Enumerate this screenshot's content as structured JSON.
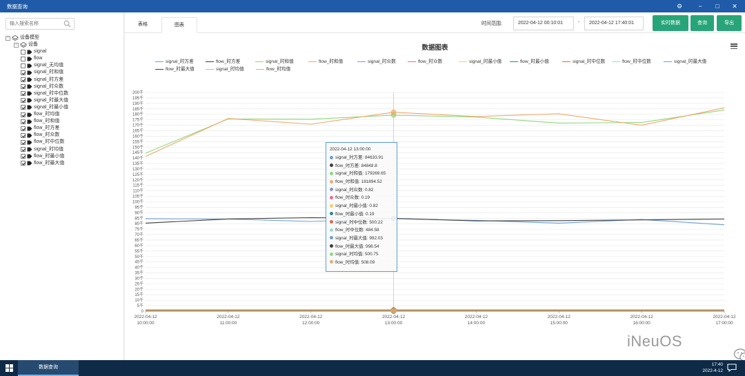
{
  "window": {
    "title": "数据查询"
  },
  "sidebar": {
    "search_placeholder": "输入搜索名称",
    "root": "设备模型",
    "device": "设备",
    "items": [
      {
        "label": "signal",
        "checked": false
      },
      {
        "label": "flow",
        "checked": false
      },
      {
        "label": "signal_无均值",
        "checked": false
      },
      {
        "label": "signal_时和值",
        "checked": true
      },
      {
        "label": "signal_时方差",
        "checked": true
      },
      {
        "label": "signal_时众数",
        "checked": true
      },
      {
        "label": "signal_时中位数",
        "checked": true
      },
      {
        "label": "signal_时最大值",
        "checked": true
      },
      {
        "label": "signal_时最小值",
        "checked": true
      },
      {
        "label": "flow_时均值",
        "checked": true
      },
      {
        "label": "flow_时和值",
        "checked": true
      },
      {
        "label": "flow_时方差",
        "checked": true
      },
      {
        "label": "flow_时众数",
        "checked": true
      },
      {
        "label": "flow_时中位数",
        "checked": true
      },
      {
        "label": "signal_时均值",
        "checked": true
      },
      {
        "label": "flow_时最小值",
        "checked": true
      },
      {
        "label": "flow_时最大值",
        "checked": true
      }
    ]
  },
  "tabs": [
    {
      "label": "表格"
    },
    {
      "label": "图表"
    }
  ],
  "toolbar": {
    "time_range_label": "时间范围:",
    "start_time": "2022-04-12 00:10:01",
    "separator": "-",
    "end_time": "2022-04-12 17:40:01",
    "realtime_button": "实时数据",
    "query_button": "查询",
    "export_button": "导出",
    "button_color": "#27a579"
  },
  "tooltip": {
    "time": "2022-04-12 13:00:00",
    "rows": [
      {
        "label": "signal_时方差: 84633.91",
        "color": "#6a9fd6"
      },
      {
        "label": "flow_时方差: 84848.8",
        "color": "#3d3d3d"
      },
      {
        "label": "signal_时和值: 179269.65",
        "color": "#8ed97a"
      },
      {
        "label": "flow_时和值: 181894.52",
        "color": "#f0a868"
      },
      {
        "label": "signal_时众数: 0.82",
        "color": "#8a8fd6"
      },
      {
        "label": "flow_时众数: 0.19",
        "color": "#f2668a"
      },
      {
        "label": "signal_时最小值: 0.82",
        "color": "#f0d060"
      },
      {
        "label": "flow_时最小值: 0.19",
        "color": "#2a8a8a"
      },
      {
        "label": "signal_时中位数: 500.22",
        "color": "#e86050"
      },
      {
        "label": "flow_时中位数: 484.58",
        "color": "#90e0d0"
      },
      {
        "label": "signal_时最大值: 992.03",
        "color": "#6a9fd6"
      },
      {
        "label": "flow_时最大值: 998.54",
        "color": "#3d3d3d"
      },
      {
        "label": "signal_时均值: 500.75",
        "color": "#8ed97a"
      },
      {
        "label": "flow_时均值: 508.09",
        "color": "#f0a868"
      }
    ]
  },
  "watermark": "iNeuOS",
  "taskbar": {
    "item": "数据查询",
    "time": "17:40",
    "date": "2022-4-12"
  },
  "chart_data": {
    "type": "line",
    "title": "数据图表",
    "x": [
      "2022-04-12 10:00:00",
      "2022-04-12 11:00:00",
      "2022-04-12 12:00:00",
      "2022-04-12 13:00:00",
      "2022-04-12 14:00:00",
      "2022-04-12 15:00:00",
      "2022-04-12 16:00:00",
      "2022-04-12 17:00:00"
    ],
    "x_tick_labels": [
      [
        "2022-04-12",
        "10:00:00"
      ],
      [
        "2022-04-12",
        "11:00:00"
      ],
      [
        "2022-04-12",
        "12:00:00"
      ],
      [
        "2022-04-12",
        "13:00:00"
      ],
      [
        "2022-04-12",
        "14:00:00"
      ],
      [
        "2022-04-12",
        "15:00:00"
      ],
      [
        "2022-04-12",
        "16:00:00"
      ],
      [
        "2022-04-12",
        "17:00:00"
      ]
    ],
    "ylim": [
      0,
      200000
    ],
    "y_tick_step": 5000,
    "legend_position": "top",
    "series": [
      {
        "name": "signal_时方差",
        "color": "#6a9fd6",
        "values": [
          84500,
          84200,
          82000,
          84633.91,
          83000,
          80500,
          83800,
          79000
        ]
      },
      {
        "name": "flow_时方差",
        "color": "#3d3d3d",
        "values": [
          80500,
          84300,
          85500,
          84848.8,
          82500,
          82800,
          83500,
          84200
        ]
      },
      {
        "name": "signal_时和值",
        "color": "#8ed97a",
        "values": [
          144500,
          175800,
          175500,
          179269.65,
          177500,
          172000,
          172500,
          184000
        ]
      },
      {
        "name": "flow_时和值",
        "color": "#f0a868",
        "values": [
          141500,
          176200,
          171000,
          181894.52,
          178000,
          180500,
          170000,
          186000
        ]
      },
      {
        "name": "signal_时众数",
        "color": "#8a8fd6",
        "values": [
          0.7,
          0.8,
          0.75,
          0.82,
          0.8,
          0.78,
          0.81,
          0.79
        ]
      },
      {
        "name": "flow_时众数",
        "color": "#f2668a",
        "values": [
          0.2,
          0.18,
          0.21,
          0.19,
          0.2,
          0.2,
          0.19,
          0.2
        ]
      },
      {
        "name": "signal_时最小值",
        "color": "#f0d060",
        "values": [
          0.7,
          0.8,
          0.75,
          0.82,
          0.8,
          0.78,
          0.81,
          0.79
        ]
      },
      {
        "name": "flow_时最小值",
        "color": "#2a8a8a",
        "values": [
          0.2,
          0.18,
          0.21,
          0.19,
          0.2,
          0.2,
          0.19,
          0.2
        ]
      },
      {
        "name": "signal_时中位数",
        "color": "#e86050",
        "values": [
          498,
          502,
          499,
          500.22,
          501,
          500,
          499,
          501
        ]
      },
      {
        "name": "flow_时中位数",
        "color": "#90e0d0",
        "values": [
          485,
          490,
          486,
          484.58,
          488,
          487,
          489,
          486
        ]
      },
      {
        "name": "signal_时最大值",
        "color": "#6a9fd6",
        "values": [
          990,
          991,
          993,
          992.03,
          992,
          991,
          990,
          993
        ]
      },
      {
        "name": "flow_时最大值",
        "color": "#3d3d3d",
        "values": [
          997,
          998,
          996,
          998.54,
          997,
          998,
          999,
          997
        ]
      },
      {
        "name": "signal_时均值",
        "color": "#8ed97a",
        "values": [
          499,
          501,
          500,
          500.75,
          500,
          501,
          499,
          500
        ]
      },
      {
        "name": "flow_时均值",
        "color": "#f0a868",
        "values": [
          506,
          509,
          507,
          508.09,
          508,
          507,
          509,
          508
        ]
      }
    ]
  }
}
